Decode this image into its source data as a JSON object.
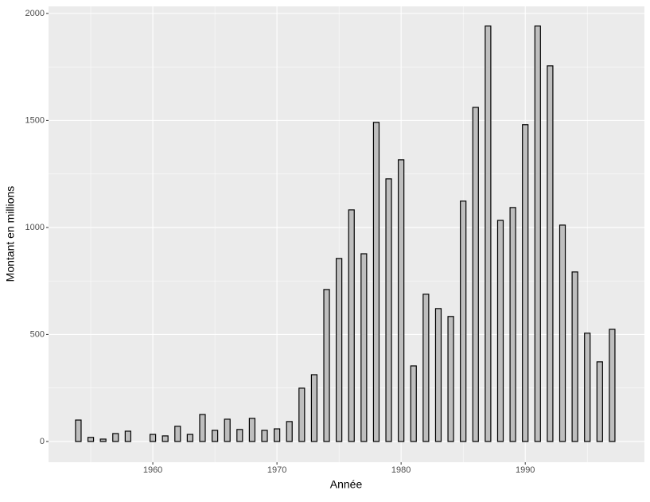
{
  "chart_data": {
    "type": "bar",
    "x_label": "Année",
    "y_label": "Montant en millions",
    "x": [
      1954,
      1955,
      1956,
      1957,
      1958,
      1960,
      1961,
      1962,
      1963,
      1964,
      1965,
      1966,
      1967,
      1968,
      1969,
      1970,
      1971,
      1972,
      1973,
      1974,
      1975,
      1976,
      1977,
      1978,
      1979,
      1980,
      1981,
      1982,
      1983,
      1984,
      1985,
      1986,
      1987,
      1988,
      1989,
      1990,
      1991,
      1992,
      1993,
      1994,
      1995,
      1996,
      1997
    ],
    "values": [
      100,
      19,
      11,
      37,
      48,
      33,
      26,
      71,
      33,
      126,
      52,
      104,
      56,
      108,
      52,
      59,
      93,
      249,
      312,
      710,
      855,
      1082,
      877,
      1491,
      1227,
      1316,
      353,
      688,
      621,
      584,
      1123,
      1561,
      1941,
      1033,
      1093,
      1480,
      1941,
      1755,
      1011,
      792,
      506,
      372,
      524
    ],
    "color": "#bebebe",
    "edge_color": "#000000",
    "xlim": [
      1951.6,
      1999.6
    ],
    "ylim": [
      -97,
      2033
    ],
    "xticks": [
      1960,
      1970,
      1980,
      1990
    ],
    "yticks": [
      0,
      500,
      1000,
      1500,
      2000
    ],
    "grid": true
  }
}
